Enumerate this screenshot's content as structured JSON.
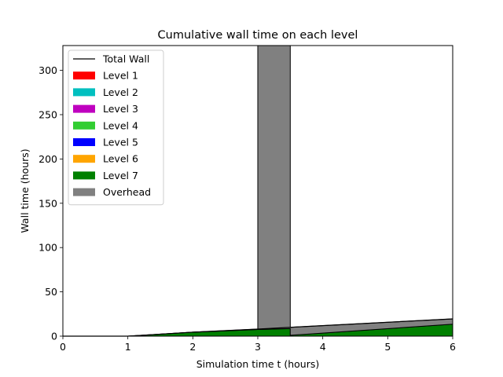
{
  "chart_data": {
    "type": "area",
    "title": "Cumulative wall time on each level",
    "xlabel": "Simulation time t (hours)",
    "ylabel": "Wall time (hours)",
    "xlim": [
      0,
      6
    ],
    "ylim": [
      0,
      328
    ],
    "xticks": [
      "0",
      "1",
      "2",
      "3",
      "4",
      "5",
      "6"
    ],
    "yticks": [
      "0",
      "50",
      "100",
      "150",
      "200",
      "250",
      "300"
    ],
    "grid": false,
    "legend_position": "upper-left",
    "x": [
      0,
      1,
      2,
      3,
      3,
      3.5,
      3.5,
      6
    ],
    "total_wall": {
      "name": "Total Wall",
      "color": "#000000",
      "values": [
        0,
        0,
        4.5,
        8,
        8,
        10,
        10,
        19.5
      ]
    },
    "series": [
      {
        "name": "Level 1",
        "color": "#ff0000",
        "values": [
          0,
          0,
          0,
          0,
          0,
          0,
          0,
          0
        ]
      },
      {
        "name": "Level 2",
        "color": "#00bfbf",
        "values": [
          0,
          0,
          0,
          0,
          0,
          0,
          0,
          0
        ]
      },
      {
        "name": "Level 3",
        "color": "#bf00bf",
        "values": [
          0,
          0,
          0,
          0,
          0,
          0,
          0,
          0
        ]
      },
      {
        "name": "Level 4",
        "color": "#32cd32",
        "values": [
          0,
          0,
          0,
          0,
          0,
          0,
          0,
          0
        ]
      },
      {
        "name": "Level 5",
        "color": "#0000ff",
        "values": [
          0,
          0,
          0,
          0,
          0,
          0,
          0,
          0
        ]
      },
      {
        "name": "Level 6",
        "color": "#ffa500",
        "values": [
          0,
          0,
          0,
          0,
          0,
          0,
          0,
          0
        ]
      },
      {
        "name": "Level 7",
        "color": "#008000",
        "values": [
          0,
          0,
          4.5,
          7.5,
          7.5,
          8.5,
          1,
          13.5
        ]
      },
      {
        "name": "Overhead",
        "color": "#808080",
        "values": [
          0,
          0,
          0,
          0.5,
          328,
          328,
          9,
          6
        ]
      }
    ]
  }
}
